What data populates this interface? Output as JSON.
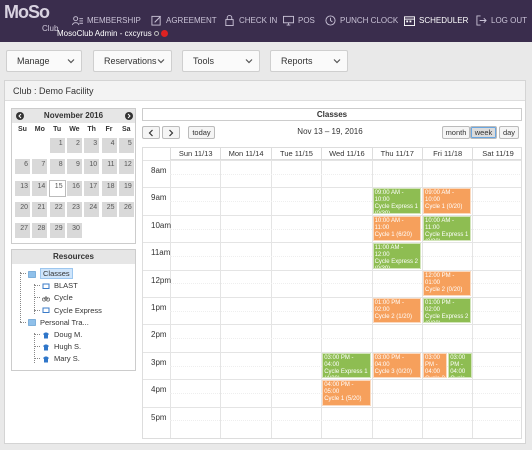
{
  "app": {
    "logo_text": "MoSo",
    "logo_sub": "Club",
    "user": "MosoClub Admin - cxcyrus"
  },
  "nav": [
    {
      "label": "MEMBERSHIP",
      "icon": "membership-icon"
    },
    {
      "label": "AGREEMENT",
      "icon": "agreement-icon"
    },
    {
      "label": "CHECK IN",
      "icon": "lock-icon"
    },
    {
      "label": "POS",
      "icon": "monitor-icon"
    },
    {
      "label": "PUNCH CLOCK",
      "icon": "clock-icon"
    },
    {
      "label": "SCHEDULER",
      "icon": "calendar-icon"
    },
    {
      "label": "LOG OUT",
      "icon": "logout-icon"
    }
  ],
  "menus": [
    "Manage",
    "Reservations",
    "Tools",
    "Reports"
  ],
  "panel_title": "Club : Demo Facility",
  "minical": {
    "month": "November 2016",
    "dow": [
      "Su",
      "Mo",
      "Tu",
      "We",
      "Th",
      "Fr",
      "Sa"
    ],
    "weeks": [
      [
        "",
        "",
        "1",
        "2",
        "3",
        "4",
        "5"
      ],
      [
        "6",
        "7",
        "8",
        "9",
        "10",
        "11",
        "12"
      ],
      [
        "13",
        "14",
        "15",
        "16",
        "17",
        "18",
        "19"
      ],
      [
        "20",
        "21",
        "22",
        "23",
        "24",
        "25",
        "26"
      ],
      [
        "27",
        "28",
        "29",
        "30",
        "",
        "",
        ""
      ]
    ],
    "today": "15"
  },
  "resources": {
    "title": "Resources",
    "items": [
      {
        "label": "Classes",
        "level": 0,
        "selected": true
      },
      {
        "label": "BLAST",
        "level": 1
      },
      {
        "label": "Cycle",
        "level": 1
      },
      {
        "label": "Cycle Express",
        "level": 1
      },
      {
        "label": "Personal Tra...",
        "level": 0
      },
      {
        "label": "Doug M.",
        "level": 1
      },
      {
        "label": "Hugh S.",
        "level": 1
      },
      {
        "label": "Mary S.",
        "level": 1
      }
    ]
  },
  "calendar": {
    "title": "Classes",
    "range": "Nov 13 – 19, 2016",
    "today_label": "today",
    "views": [
      "month",
      "week",
      "day"
    ],
    "active_view": "week",
    "days": [
      "Sun 11/13",
      "Mon 11/14",
      "Tue 11/15",
      "Wed 11/16",
      "Thu 11/17",
      "Fri 11/18",
      "Sat 11/19"
    ],
    "hours": [
      "8am",
      "9am",
      "10am",
      "11am",
      "12pm",
      "1pm",
      "2pm",
      "3pm",
      "4pm",
      "5pm"
    ],
    "colors": {
      "green": "#8ebd52",
      "orange": "#f6a05c"
    },
    "events": [
      {
        "day": 4,
        "start": 9.0,
        "end": 10.0,
        "time": "09:00 AM - 10:00",
        "title": "Cycle Express 1 (0/30)",
        "color": "green"
      },
      {
        "day": 5,
        "start": 9.0,
        "end": 10.0,
        "time": "09:00 AM - 10:00",
        "title": "Cycle 1 (0/20)",
        "color": "orange"
      },
      {
        "day": 4,
        "start": 10.0,
        "end": 11.0,
        "time": "10:00 AM - 11:00",
        "title": "Cycle 1 (6/20)",
        "color": "orange"
      },
      {
        "day": 5,
        "start": 10.0,
        "end": 11.0,
        "time": "10:00 AM - 11:00",
        "title": "Cycle Express 1 (0/30)",
        "color": "green"
      },
      {
        "day": 4,
        "start": 11.0,
        "end": 12.0,
        "time": "11:00 AM - 12:00",
        "title": "Cycle Express 2 (0/30)",
        "color": "green"
      },
      {
        "day": 5,
        "start": 12.0,
        "end": 13.0,
        "time": "12:00 PM - 01:00",
        "title": "Cycle 2 (0/20)",
        "color": "orange"
      },
      {
        "day": 4,
        "start": 13.0,
        "end": 14.0,
        "time": "01:00 PM - 02:00",
        "title": "Cycle 2 (1/20)",
        "color": "orange"
      },
      {
        "day": 5,
        "start": 13.0,
        "end": 14.0,
        "time": "01:00 PM - 02:00",
        "title": "Cycle Express 2 (0/30)",
        "color": "green"
      },
      {
        "day": 3,
        "start": 15.0,
        "end": 16.0,
        "time": "03:00 PM - 04:00",
        "title": "Cycle Express 1 (4/30)",
        "color": "green"
      },
      {
        "day": 4,
        "start": 15.0,
        "end": 16.0,
        "time": "03:00 PM - 04:00",
        "title": "Cycle 3 (0/20)",
        "color": "orange"
      },
      {
        "day": 5,
        "start": 15.0,
        "end": 16.0,
        "time": "03:00 PM - 04:00",
        "title": "Cycle 3 (0/20)",
        "color": "orange",
        "half": 0
      },
      {
        "day": 5,
        "start": 15.0,
        "end": 16.0,
        "time": "03:00 PM - 04:00",
        "title": "Cycle Express",
        "color": "green",
        "half": 1
      },
      {
        "day": 3,
        "start": 16.0,
        "end": 17.0,
        "time": "04:00 PM - 05:00",
        "title": "Cycle 1 (5/20)",
        "color": "orange"
      }
    ]
  }
}
